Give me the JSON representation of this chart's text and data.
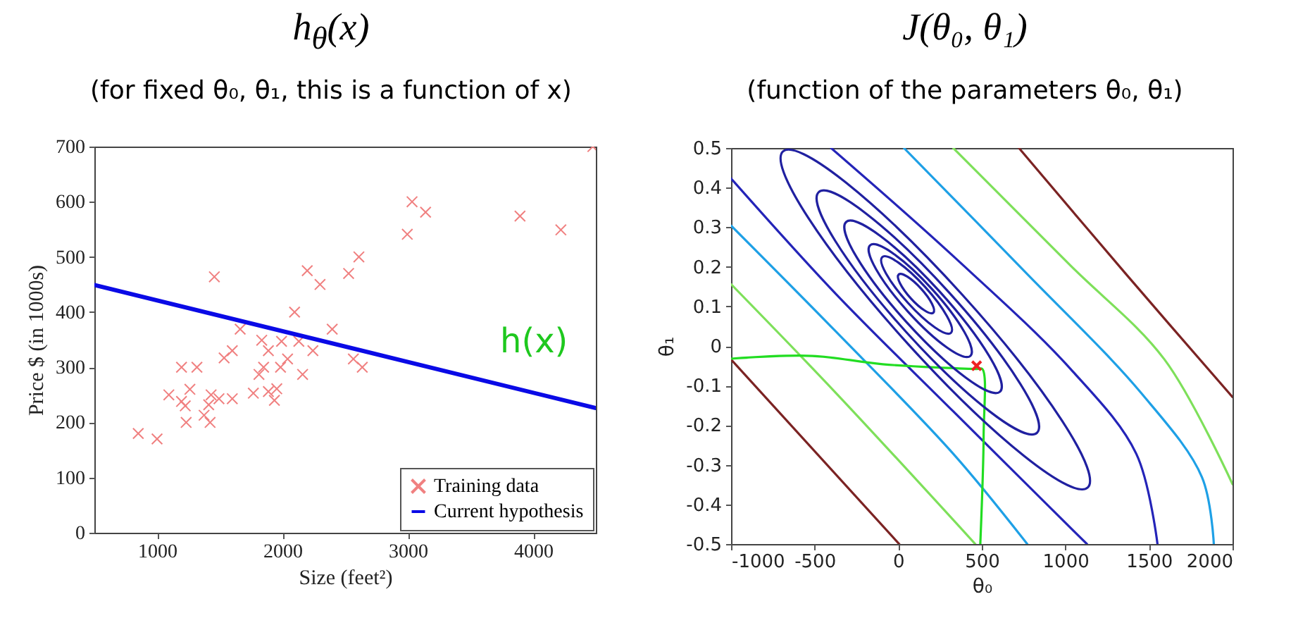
{
  "chart_data": [
    {
      "type": "scatter",
      "title": "h$_{θ}$(x)",
      "subtitle": "(for fixed θ₀, θ₁, this is a function of x)",
      "xlabel": "Size (feet²)",
      "ylabel": "Price $ (in 1000s)",
      "xlim": [
        500,
        4500
      ],
      "xticks": [
        1000,
        2000,
        3000,
        4000
      ],
      "ylim": [
        0,
        700
      ],
      "yticks": [
        0,
        100,
        200,
        300,
        400,
        500,
        600,
        700
      ],
      "legend": "bottom right",
      "annotations": [
        "h(x)"
      ],
      "series": [
        {
          "name": "Training data",
          "marker": "cross",
          "color": "#f08080",
          "x": [
            850,
            1000,
            1094,
            1195,
            1195,
            1225,
            1262,
            1232,
            1318,
            1375,
            1412,
            1423,
            1431,
            1494,
            1457,
            1535,
            1600,
            1600,
            1663,
            1768,
            1813,
            1835,
            1850,
            1888,
            1888,
            1936,
            1955,
            1985,
            1993,
            2041,
            2097,
            2131,
            2161,
            2198,
            2243,
            2300,
            2397,
            2528,
            2566,
            2610,
            2637,
            2996,
            3034,
            3142,
            3895,
            4221,
            4476
          ],
          "values": [
            180,
            170,
            250,
            300,
            238,
            230,
            260,
            200,
            300,
            213,
            232,
            200,
            250,
            243,
            464,
            317,
            330,
            243,
            369,
            253,
            287,
            349,
            300,
            330,
            256,
            240,
            261,
            300,
            347,
            315,
            400,
            347,
            287,
            475,
            330,
            450,
            369,
            470,
            315,
            500,
            300,
            541,
            600,
            581,
            574,
            549,
            700
          ]
        },
        {
          "name": "Current hypothesis",
          "type": "line",
          "color": "#0a0ae6",
          "x": [
            500,
            4500
          ],
          "values": [
            449,
            226
          ]
        }
      ]
    },
    {
      "type": "line",
      "title": "J(θ₀, θ₁)",
      "subtitle": "(function of the parameters θ₀, θ₁)",
      "xlabel": "θ₀",
      "ylabel": "θ₁",
      "xlim": [
        -1000,
        2000
      ],
      "xticks": [
        -1000,
        -500,
        0,
        500,
        1000,
        1500,
        2000
      ],
      "ylim": [
        -0.5,
        0.5
      ],
      "yticks": [
        -0.5,
        -0.4,
        -0.3,
        -0.2,
        -0.1,
        0,
        0.1,
        0.2,
        0.3,
        0.4,
        0.5
      ],
      "series": [
        {
          "color": "#2424b8",
          "x": [
            -402,
            329,
            1031,
            1424,
            1551
          ],
          "values": [
            0.5,
            0.227,
            -0.058,
            -0.272,
            -0.5
          ]
        },
        {
          "color": "#2424b8",
          "x": [
            -1000,
            -374,
            329,
            1129
          ],
          "values": [
            0.423,
            0.132,
            -0.165,
            -0.5
          ]
        },
        {
          "color": "#1ea0e6",
          "x": [
            34,
            750,
            1452,
            1817,
            1888
          ],
          "values": [
            0.5,
            0.191,
            -0.118,
            -0.331,
            -0.5
          ]
        },
        {
          "color": "#1ea0e6",
          "x": [
            -1000,
            -374,
            329,
            772
          ],
          "values": [
            0.304,
            0.037,
            -0.272,
            -0.5
          ]
        },
        {
          "color": "#7ee05a",
          "x": [
            329,
            1031,
            1593,
            2000
          ],
          "values": [
            0.5,
            0.203,
            -0.034,
            -0.349
          ]
        },
        {
          "color": "#7ee05a",
          "x": [
            -1000,
            -374,
            461
          ],
          "values": [
            0.156,
            -0.118,
            -0.5
          ]
        },
        {
          "color": "#7b2323",
          "x": [
            722,
            1368,
            2000
          ],
          "values": [
            0.5,
            0.179,
            -0.129
          ]
        },
        {
          "color": "#7b2323",
          "x": [
            -1000,
            6
          ],
          "values": [
            -0.034,
            -0.5
          ]
        },
        {
          "color": "#22dd22",
          "x": [
            -1000,
            -514,
            -93,
            469,
            503,
            511,
            491
          ],
          "values": [
            -0.032,
            -0.025,
            -0.046,
            -0.058,
            -0.058,
            -0.224,
            -0.5
          ]
        },
        {
          "type": "scatter",
          "marker": "cross",
          "color": "#ee2222",
          "x": [
            469
          ],
          "values": [
            -0.05
          ]
        }
      ]
    }
  ]
}
